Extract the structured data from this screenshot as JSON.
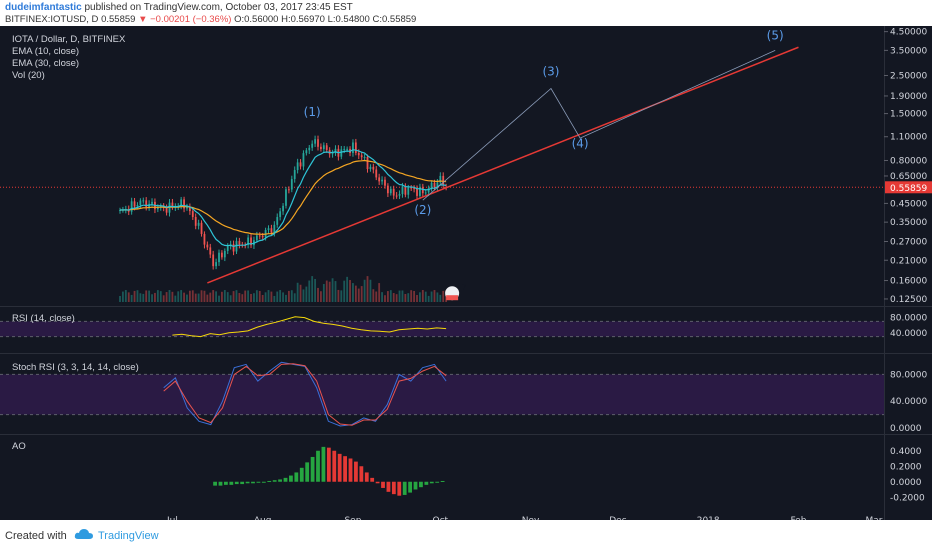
{
  "header": {
    "author": "dudeimfantastic",
    "published_text": "published on TradingView.com, October 03, 2017 23:45 EST",
    "symbol_line": "BITFINEX:IOTUSD, D",
    "last": "0.55859",
    "change": "−0.00201 (−0.36%)",
    "ohlc": "O:0.56000 H:0.56970 L:0.54800 C:0.55859"
  },
  "legend": {
    "title": "IOTA / Dollar, D, BITFINEX",
    "ema10": "EMA (10, close)",
    "ema30": "EMA (30, close)",
    "vol": "Vol (20)",
    "rsi": "RSI (14, close)",
    "stoch": "Stoch RSI (3, 3, 14, 14, close)",
    "ao": "AO"
  },
  "colors": {
    "background": "#131722",
    "candle_up": "#26a69a",
    "candle_down": "#ef5350",
    "trendline": "#e53935",
    "ema10": "#2ec4d6",
    "ema30": "#f5a623",
    "rsi": "#f5d90a",
    "stoch_k": "#3b6fd8",
    "stoch_d": "#e8534f",
    "ao_up": "#26a641",
    "ao_down": "#e53935",
    "wave_label": "#5b9be8",
    "price_label": "#e53935"
  },
  "price_axis": [
    "4.50000",
    "3.50000",
    "2.50000",
    "1.90000",
    "1.50000",
    "1.10000",
    "0.80000",
    "0.65000",
    "0.45000",
    "0.35000",
    "0.27000",
    "0.21000",
    "0.16000",
    "0.12500"
  ],
  "last_price_label": "0.55859",
  "rsi_axis": [
    "80.0000",
    "40.0000"
  ],
  "stoch_axis": [
    "80.0000",
    "40.0000",
    "0.0000"
  ],
  "ao_axis": [
    "0.4000",
    "0.2000",
    "0.0000",
    "-0.2000"
  ],
  "x_axis": [
    "Jul",
    "Aug",
    "Sep",
    "Oct",
    "Nov",
    "Dec",
    "2018",
    "Feb",
    "Mar"
  ],
  "waves": [
    "(1)",
    "(2)",
    "(3)",
    "(4)",
    "(5)"
  ],
  "event_badge": "7",
  "footer": {
    "created_with": "Created with",
    "brand": "TradingView"
  },
  "chart_data": [
    {
      "type": "candlestick",
      "title": "IOTA / Dollar, D, BITFINEX",
      "y_scale": "log",
      "ylim": [
        0.12,
        4.6
      ],
      "x_range": [
        "2017-06-13",
        "2018-03-01"
      ],
      "anchors": [
        {
          "date": "2017-06-13",
          "close": 0.4
        },
        {
          "date": "2017-06-20",
          "close": 0.46
        },
        {
          "date": "2017-06-28",
          "close": 0.42
        },
        {
          "date": "2017-07-05",
          "close": 0.45
        },
        {
          "date": "2017-07-10",
          "close": 0.33
        },
        {
          "date": "2017-07-15",
          "close": 0.2
        },
        {
          "date": "2017-07-20",
          "close": 0.25
        },
        {
          "date": "2017-07-28",
          "close": 0.27
        },
        {
          "date": "2017-08-05",
          "close": 0.33
        },
        {
          "date": "2017-08-12",
          "close": 0.7
        },
        {
          "date": "2017-08-18",
          "close": 1.03
        },
        {
          "date": "2017-08-25",
          "close": 0.88
        },
        {
          "date": "2017-09-01",
          "close": 0.95
        },
        {
          "date": "2017-09-05",
          "close": 0.8
        },
        {
          "date": "2017-09-10",
          "close": 0.62
        },
        {
          "date": "2017-09-15",
          "close": 0.5
        },
        {
          "date": "2017-09-20",
          "close": 0.55
        },
        {
          "date": "2017-09-25",
          "close": 0.52
        },
        {
          "date": "2017-10-01",
          "close": 0.62
        },
        {
          "date": "2017-10-03",
          "close": 0.55859
        }
      ],
      "last": {
        "open": 0.56,
        "high": 0.5697,
        "low": 0.548,
        "close": 0.55859
      },
      "series": [
        {
          "name": "EMA (10, close)"
        },
        {
          "name": "EMA (30, close)"
        },
        {
          "name": "Vol (20)"
        }
      ],
      "trendline": {
        "from": {
          "date": "2017-07-13",
          "price": 0.155
        },
        "to": {
          "date": "2018-02-01",
          "price": 3.65
        }
      },
      "wave_projection": [
        {
          "label": "(2)",
          "date": "2017-09-25",
          "price": 0.47
        },
        {
          "label": "(3)",
          "date": "2017-11-08",
          "price": 2.1
        },
        {
          "label": "(4)",
          "date": "2017-11-18",
          "price": 1.08
        },
        {
          "label": "(5)",
          "date": "2018-01-24",
          "price": 3.5
        }
      ]
    },
    {
      "type": "line",
      "title": "RSI (14, close)",
      "ylim": [
        0,
        100
      ],
      "guides": [
        70,
        30
      ],
      "values": [
        34,
        36,
        32,
        30,
        38,
        35,
        40,
        42,
        45,
        55,
        62,
        68,
        75,
        82,
        80,
        70,
        65,
        62,
        58,
        52,
        48,
        45,
        44,
        42,
        48,
        50,
        52,
        50,
        53,
        51
      ]
    },
    {
      "type": "line",
      "title": "Stoch RSI (3, 3, 14, 14, close)",
      "ylim": [
        0,
        100
      ],
      "guides": [
        80,
        20
      ],
      "series": [
        {
          "values": [
            60,
            75,
            30,
            10,
            5,
            40,
            90,
            95,
            70,
            85,
            98,
            95,
            92,
            60,
            10,
            3,
            5,
            15,
            10,
            35,
            80,
            70,
            90,
            95,
            70
          ]
        },
        {
          "values": [
            55,
            70,
            40,
            15,
            8,
            30,
            80,
            92,
            78,
            80,
            95,
            96,
            93,
            70,
            20,
            6,
            4,
            12,
            12,
            28,
            70,
            74,
            85,
            92,
            78
          ]
        }
      ]
    },
    {
      "type": "bar",
      "title": "AO",
      "ylim": [
        -0.3,
        0.5
      ],
      "values": [
        -0.05,
        -0.05,
        -0.04,
        -0.04,
        -0.03,
        -0.03,
        -0.02,
        -0.02,
        -0.01,
        0.0,
        0.01,
        0.02,
        0.03,
        0.05,
        0.08,
        0.12,
        0.18,
        0.25,
        0.32,
        0.4,
        0.45,
        0.44,
        0.4,
        0.36,
        0.33,
        0.3,
        0.26,
        0.2,
        0.12,
        0.05,
        -0.02,
        -0.08,
        -0.13,
        -0.16,
        -0.18,
        -0.17,
        -0.14,
        -0.1,
        -0.07,
        -0.04,
        -0.02,
        0.0,
        0.01
      ]
    }
  ]
}
